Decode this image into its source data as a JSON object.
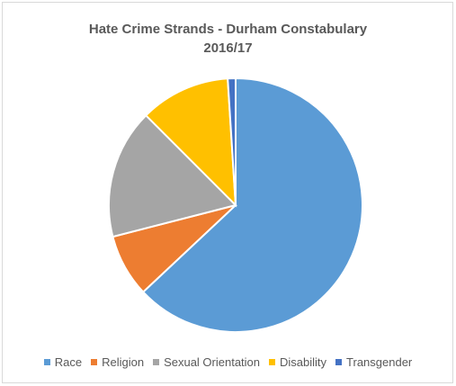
{
  "chart_data": {
    "type": "pie",
    "title": "Hate Crime Strands - Durham Constabulary",
    "subtitle": "2016/17",
    "categories": [
      "Race",
      "Religion",
      "Sexual Orientation",
      "Disability",
      "Transgender"
    ],
    "values": [
      63,
      8,
      16.5,
      11.5,
      1
    ],
    "colors": [
      "#5b9bd5",
      "#ed7d31",
      "#a5a5a5",
      "#ffc000",
      "#4472c4"
    ],
    "start_angle": "12 o'clock",
    "direction": "clockwise",
    "legend_position": "bottom"
  }
}
